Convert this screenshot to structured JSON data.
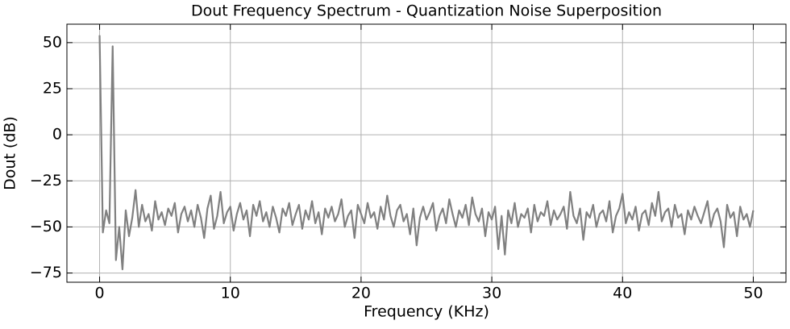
{
  "chart_data": {
    "type": "line",
    "title": "Dout Frequency Spectrum - Quantization Noise Superposition",
    "xlabel": "Frequency (KHz)",
    "ylabel": "Dout (dB)",
    "x": [
      0,
      0.25,
      0.5,
      0.75,
      1,
      1.25,
      1.5,
      1.75,
      2,
      2.25,
      2.5,
      2.75,
      3,
      3.25,
      3.5,
      3.75,
      4,
      4.25,
      4.5,
      4.75,
      5,
      5.25,
      5.5,
      5.75,
      6,
      6.25,
      6.5,
      6.75,
      7,
      7.25,
      7.5,
      7.75,
      8,
      8.25,
      8.5,
      8.75,
      9,
      9.25,
      9.5,
      9.75,
      10,
      10.25,
      10.5,
      10.75,
      11,
      11.25,
      11.5,
      11.75,
      12,
      12.25,
      12.5,
      12.75,
      13,
      13.25,
      13.5,
      13.75,
      14,
      14.25,
      14.5,
      14.75,
      15,
      15.25,
      15.5,
      15.75,
      16,
      16.25,
      16.5,
      16.75,
      17,
      17.25,
      17.5,
      17.75,
      18,
      18.25,
      18.5,
      18.75,
      19,
      19.25,
      19.5,
      19.75,
      20,
      20.25,
      20.5,
      20.75,
      21,
      21.25,
      21.5,
      21.75,
      22,
      22.25,
      22.5,
      22.75,
      23,
      23.25,
      23.5,
      23.75,
      24,
      24.25,
      24.5,
      24.75,
      25,
      25.25,
      25.5,
      25.75,
      26,
      26.25,
      26.5,
      26.75,
      27,
      27.25,
      27.5,
      27.75,
      28,
      28.25,
      28.5,
      28.75,
      29,
      29.25,
      29.5,
      29.75,
      30,
      30.25,
      30.5,
      30.75,
      31,
      31.25,
      31.5,
      31.75,
      32,
      32.25,
      32.5,
      32.75,
      33,
      33.25,
      33.5,
      33.75,
      34,
      34.25,
      34.5,
      34.75,
      35,
      35.25,
      35.5,
      35.75,
      36,
      36.25,
      36.5,
      36.75,
      37,
      37.25,
      37.5,
      37.75,
      38,
      38.25,
      38.5,
      38.75,
      39,
      39.25,
      39.5,
      39.75,
      40,
      40.25,
      40.5,
      40.75,
      41,
      41.25,
      41.5,
      41.75,
      42,
      42.25,
      42.5,
      42.75,
      43,
      43.25,
      43.5,
      43.75,
      44,
      44.25,
      44.5,
      44.75,
      45,
      45.25,
      45.5,
      45.75,
      46,
      46.25,
      46.5,
      46.75,
      47,
      47.25,
      47.5,
      47.75,
      48,
      48.25,
      48.5,
      48.75,
      49,
      49.25,
      49.5,
      49.75,
      50
    ],
    "series": [
      {
        "color": "#808080",
        "values": [
          54,
          -53,
          -41,
          -48,
          48,
          -68,
          -50,
          -73,
          -41,
          -55,
          -45,
          -30,
          -50,
          -38,
          -47,
          -43,
          -52,
          -36,
          -46,
          -42,
          -49,
          -40,
          -44,
          -37,
          -53,
          -43,
          -39,
          -47,
          -41,
          -50,
          -38,
          -45,
          -56,
          -40,
          -33,
          -51,
          -44,
          -31,
          -48,
          -42,
          -39,
          -52,
          -43,
          -37,
          -46,
          -41,
          -55,
          -38,
          -44,
          -36,
          -47,
          -42,
          -50,
          -39,
          -45,
          -53,
          -40,
          -44,
          -37,
          -49,
          -43,
          -38,
          -51,
          -41,
          -46,
          -36,
          -48,
          -42,
          -54,
          -40,
          -45,
          -39,
          -47,
          -43,
          -35,
          -50,
          -44,
          -41,
          -56,
          -38,
          -43,
          -48,
          -37,
          -45,
          -42,
          -51,
          -39,
          -46,
          -33,
          -44,
          -50,
          -41,
          -38,
          -47,
          -43,
          -54,
          -40,
          -60,
          -45,
          -39,
          -46,
          -42,
          -37,
          -52,
          -44,
          -40,
          -48,
          -35,
          -43,
          -50,
          -41,
          -45,
          -38,
          -49,
          -34,
          -43,
          -47,
          -40,
          -55,
          -42,
          -46,
          -39,
          -62,
          -44,
          -65,
          -41,
          -48,
          -37,
          -50,
          -43,
          -45,
          -40,
          -53,
          -38,
          -47,
          -42,
          -44,
          -36,
          -49,
          -41,
          -46,
          -43,
          -39,
          -51,
          -31,
          -44,
          -48,
          -40,
          -57,
          -42,
          -45,
          -38,
          -50,
          -43,
          -41,
          -47,
          -36,
          -53,
          -44,
          -40,
          -32,
          -48,
          -42,
          -46,
          -39,
          -52,
          -43,
          -41,
          -49,
          -37,
          -44,
          -31,
          -47,
          -42,
          -40,
          -50,
          -38,
          -45,
          -43,
          -54,
          -41,
          -46,
          -39,
          -44,
          -48,
          -42,
          -36,
          -50,
          -43,
          -40,
          -47,
          -61,
          -38,
          -45,
          -42,
          -55,
          -39,
          -46,
          -43,
          -50,
          -41
        ]
      }
    ],
    "xlim": [
      -2.5,
      52.5
    ],
    "ylim": [
      -80,
      60
    ],
    "xticks": [
      0,
      10,
      20,
      30,
      40,
      50
    ],
    "yticks": [
      {
        "value": -75,
        "label": "−75"
      },
      {
        "value": -50,
        "label": "−50"
      },
      {
        "value": -25,
        "label": "−25"
      },
      0,
      25,
      50
    ],
    "grid": true
  }
}
